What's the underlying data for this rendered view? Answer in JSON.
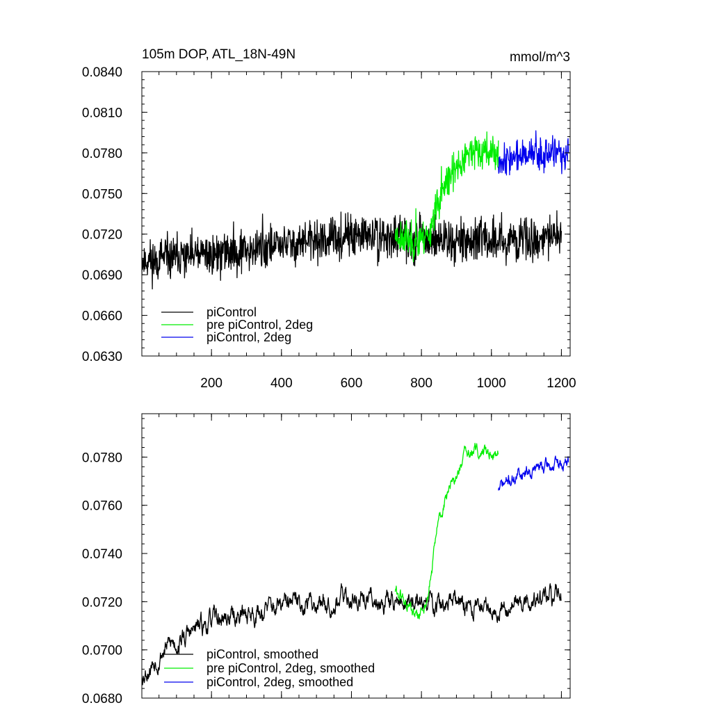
{
  "chart_data": [
    {
      "type": "line",
      "title": "105m DOP, ATL_18N-49N",
      "units": "mmol/m^3",
      "xlim": [
        1,
        1225
      ],
      "ylim": [
        0.063,
        0.084
      ],
      "xticks": [
        200,
        400,
        600,
        800,
        1000,
        1200
      ],
      "xtick_labels": [
        "200",
        "400",
        "600",
        "800",
        "1000",
        "1200"
      ],
      "yticks": [
        0.063,
        0.066,
        0.069,
        0.072,
        0.075,
        0.078,
        0.081,
        0.084
      ],
      "ytick_labels": [
        "0.0630",
        "0.0660",
        "0.0690",
        "0.0720",
        "0.0750",
        "0.0780",
        "0.0810",
        "0.0840"
      ],
      "legend_position": "bottom-left",
      "series": [
        {
          "name": "piControl",
          "color": "#000000",
          "x_range": [
            1,
            1200
          ],
          "seed": 11,
          "noise": 0.00135,
          "trend": [
            [
              1,
              0.07
            ],
            [
              200,
              0.0705
            ],
            [
              400,
              0.0712
            ],
            [
              600,
              0.0718
            ],
            [
              800,
              0.0717
            ],
            [
              1000,
              0.0715
            ],
            [
              1200,
              0.0718
            ]
          ]
        },
        {
          "name": "pre piControl, 2deg",
          "color": "#00ee00",
          "x_range": [
            725,
            1020
          ],
          "seed": 23,
          "noise": 0.0011,
          "trend": [
            [
              725,
              0.072
            ],
            [
              790,
              0.0713
            ],
            [
              820,
              0.072
            ],
            [
              850,
              0.0745
            ],
            [
              900,
              0.077
            ],
            [
              940,
              0.078
            ],
            [
              1020,
              0.078
            ]
          ]
        },
        {
          "name": "piControl, 2deg",
          "color": "#0000ee",
          "x_range": [
            1020,
            1220
          ],
          "seed": 37,
          "noise": 0.001,
          "trend": [
            [
              1020,
              0.0775
            ],
            [
              1100,
              0.0778
            ],
            [
              1220,
              0.0778
            ]
          ]
        }
      ]
    },
    {
      "type": "line",
      "title": "",
      "units": "",
      "xlim": [
        1,
        1225
      ],
      "ylim": [
        0.068,
        0.0798
      ],
      "xticks": [
        200,
        400,
        600,
        800,
        1000,
        1200
      ],
      "xtick_labels": [
        "",
        "",
        "",
        "",
        "",
        ""
      ],
      "yticks": [
        0.068,
        0.07,
        0.072,
        0.074,
        0.076,
        0.078
      ],
      "ytick_labels": [
        "0.0680",
        "0.0700",
        "0.0720",
        "0.0740",
        "0.0760",
        "0.0780"
      ],
      "legend_position": "bottom-left",
      "series": [
        {
          "name": "piControl, smoothed",
          "color": "#000000",
          "x_range": [
            1,
            1200
          ],
          "seed": 53,
          "noise": 0.0006,
          "trend": [
            [
              1,
              0.069
            ],
            [
              60,
              0.07
            ],
            [
              200,
              0.0712
            ],
            [
              400,
              0.0718
            ],
            [
              600,
              0.0722
            ],
            [
              800,
              0.0719
            ],
            [
              1000,
              0.0718
            ],
            [
              1200,
              0.0722
            ]
          ]
        },
        {
          "name": "pre piControl, 2deg, smoothed",
          "color": "#00ee00",
          "x_range": [
            725,
            1020
          ],
          "seed": 61,
          "noise": 0.0004,
          "trend": [
            [
              725,
              0.0725
            ],
            [
              790,
              0.0712
            ],
            [
              820,
              0.0722
            ],
            [
              850,
              0.0755
            ],
            [
              900,
              0.0772
            ],
            [
              930,
              0.0782
            ],
            [
              1020,
              0.0782
            ]
          ]
        },
        {
          "name": "piControl, 2deg, smoothed",
          "color": "#0000ee",
          "x_range": [
            1020,
            1220
          ],
          "seed": 71,
          "noise": 0.0004,
          "trend": [
            [
              1020,
              0.0767
            ],
            [
              1100,
              0.0775
            ],
            [
              1220,
              0.0777
            ]
          ]
        }
      ]
    }
  ]
}
